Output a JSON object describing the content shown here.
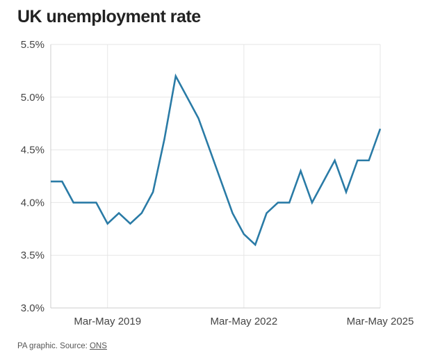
{
  "title": "UK unemployment rate",
  "footer": {
    "prefix": "PA graphic. Source: ",
    "source_link": "ONS"
  },
  "colors": {
    "line": "#2a7ba6",
    "grid": "#e6e6e6",
    "axis": "#cccccc",
    "text": "#444444"
  },
  "chart_data": {
    "type": "line",
    "title": "UK unemployment rate",
    "xlabel": "",
    "ylabel": "",
    "x_tick_labels": [
      {
        "label": "Mar-May 2019",
        "index": 5
      },
      {
        "label": "Mar-May 2022",
        "index": 17
      },
      {
        "label": "Mar-May 2025",
        "index": 29
      }
    ],
    "y_tick_labels": [
      "3.0%",
      "3.5%",
      "4.0%",
      "4.5%",
      "5.0%",
      "5.5%"
    ],
    "ylim": [
      3.0,
      5.5
    ],
    "grid": true,
    "series": [
      {
        "values": [
          4.2,
          4.2,
          4.0,
          4.0,
          4.0,
          3.8,
          3.9,
          3.8,
          3.9,
          4.1,
          4.6,
          5.2,
          5.0,
          4.8,
          4.5,
          4.2,
          3.9,
          3.7,
          3.6,
          3.9,
          4.0,
          4.0,
          4.3,
          4.0,
          4.2,
          4.4,
          4.1,
          4.4,
          4.4,
          4.7
        ]
      }
    ]
  }
}
